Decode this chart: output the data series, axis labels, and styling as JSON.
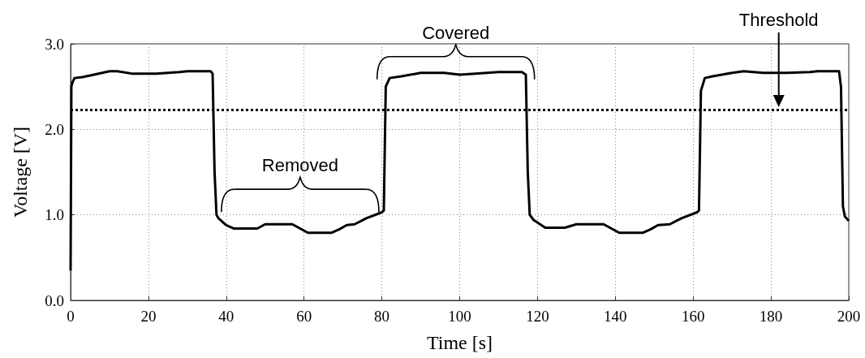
{
  "chart_data": {
    "type": "line",
    "xlabel": "Time [s]",
    "ylabel": "Voltage [V]",
    "xlim": [
      0,
      200
    ],
    "xticks": [
      0,
      20,
      40,
      60,
      80,
      100,
      120,
      140,
      160,
      180,
      200
    ],
    "ylim": [
      0,
      3
    ],
    "yticks": [
      {
        "value": 0,
        "label": "0.0"
      },
      {
        "value": 1,
        "label": "1.0"
      },
      {
        "value": 2,
        "label": "2.0"
      },
      {
        "value": 3,
        "label": "3.0"
      }
    ],
    "grid": true,
    "marker": "none",
    "line_style": "solid",
    "series": [
      {
        "color": "#000000",
        "x": [
          0,
          0.2,
          0.5,
          1,
          3,
          6,
          10,
          12,
          16,
          22,
          28,
          30,
          36,
          36.5,
          37,
          37.5,
          38,
          40,
          42,
          48,
          50,
          57,
          59,
          61,
          67,
          69,
          71,
          73,
          76,
          80,
          80.5,
          81,
          82,
          85,
          90,
          96,
          100,
          104,
          110,
          116,
          117,
          117.5,
          118,
          119,
          122,
          127,
          130,
          137,
          139,
          141,
          147,
          149,
          151,
          154,
          157,
          161,
          161.5,
          162,
          163,
          165,
          170,
          173,
          178,
          184,
          190,
          192,
          197.5,
          198,
          198.5,
          199,
          200
        ],
        "values": [
          0.35,
          2.5,
          2.55,
          2.6,
          2.61,
          2.64,
          2.68,
          2.68,
          2.65,
          2.65,
          2.67,
          2.68,
          2.68,
          2.65,
          1.5,
          1.0,
          0.96,
          0.88,
          0.84,
          0.84,
          0.89,
          0.89,
          0.84,
          0.79,
          0.79,
          0.83,
          0.88,
          0.89,
          0.96,
          1.03,
          1.05,
          2.5,
          2.6,
          2.62,
          2.66,
          2.66,
          2.64,
          2.65,
          2.67,
          2.67,
          2.64,
          1.5,
          1.0,
          0.94,
          0.85,
          0.85,
          0.89,
          0.89,
          0.84,
          0.79,
          0.79,
          0.83,
          0.88,
          0.89,
          0.96,
          1.03,
          1.05,
          2.45,
          2.6,
          2.62,
          2.66,
          2.68,
          2.66,
          2.66,
          2.67,
          2.68,
          2.68,
          2.5,
          1.1,
          0.98,
          0.93
        ]
      }
    ],
    "ref_lines": [
      {
        "axis": "y",
        "value": 2.23,
        "label": "Threshold",
        "color": "#000000",
        "line_style": "dotted"
      }
    ],
    "annotations": [
      "Removed",
      "Covered"
    ]
  }
}
